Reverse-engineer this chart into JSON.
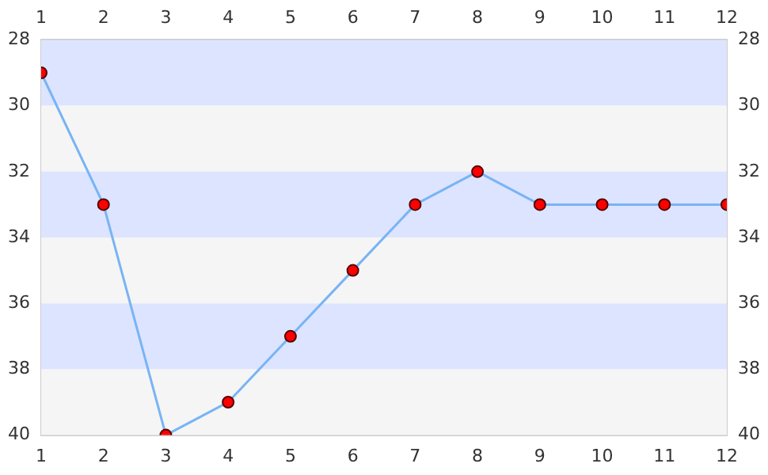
{
  "chart_data": {
    "type": "line",
    "x": [
      1,
      2,
      3,
      4,
      5,
      6,
      7,
      8,
      9,
      10,
      11,
      12
    ],
    "series": [
      {
        "color": "#78b4f4",
        "colors": [
          "#ff0000",
          "#ff0000",
          "#ff0000",
          "#ff0000",
          "#ff0000",
          "#ff0000",
          "#ff0000",
          "#ff0000",
          "#ff0000",
          "#ff0000",
          "#ff0000",
          "#ff0000"
        ],
        "values": [
          29,
          33,
          40,
          39,
          37,
          35,
          33,
          32,
          33,
          33,
          33,
          33
        ]
      }
    ],
    "xlim": [
      1,
      12
    ],
    "xticks": [
      1,
      2,
      3,
      4,
      5,
      6,
      7,
      8,
      9,
      10,
      11,
      12
    ],
    "x2lim": [
      1,
      12
    ],
    "x2ticks": [
      1,
      2,
      3,
      4,
      5,
      6,
      7,
      8,
      9,
      10,
      11,
      12
    ],
    "ylim": [
      40,
      28
    ],
    "yticks": [
      28,
      30,
      32,
      34,
      36,
      38,
      40
    ],
    "y2lim": [
      40,
      28
    ],
    "y2ticks": [
      28,
      30,
      32,
      34,
      36,
      38,
      40
    ],
    "bands": [
      {
        "axis": "y",
        "from": 28,
        "to": 30,
        "color": "#dde4ff"
      },
      {
        "axis": "y",
        "from": 30,
        "to": 32,
        "color": "#f5f5f5"
      },
      {
        "axis": "y",
        "from": 32,
        "to": 34,
        "color": "#dde4ff"
      },
      {
        "axis": "y",
        "from": 34,
        "to": 36,
        "color": "#f5f5f5"
      },
      {
        "axis": "y",
        "from": 36,
        "to": 38,
        "color": "#dde4ff"
      },
      {
        "axis": "y",
        "from": 38,
        "to": 40,
        "color": "#f5f5f5"
      }
    ],
    "marker": "circle",
    "line_style": "solid",
    "legend": false,
    "grid": false
  }
}
